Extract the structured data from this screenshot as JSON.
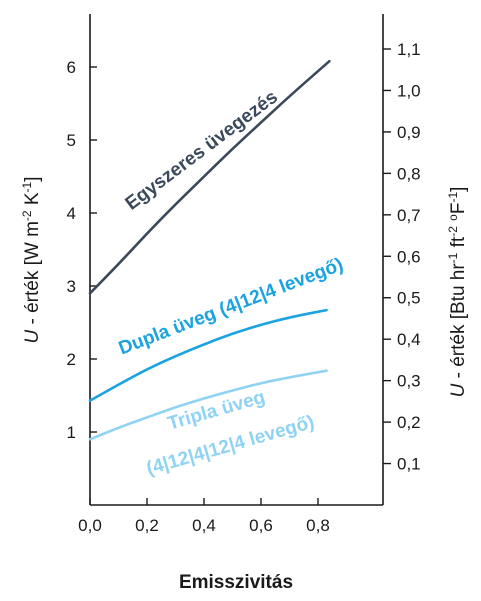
{
  "chart_data": {
    "type": "line",
    "xlabel": "Emisszivitás",
    "ylabel_left": {
      "prefix": "U",
      "text": " - érték [W m",
      "sup1": "-2",
      "mid": " K",
      "sup2": "-1",
      "end": "]"
    },
    "ylabel_right": {
      "prefix": "U",
      "text": " - érték [Btu hr",
      "sup1": "-1",
      "mid": " ft",
      "sup2": "-2",
      "sep": " ",
      "sup3": "o",
      "end": "F",
      "sup4": "-1",
      "close": "]"
    },
    "xlim": [
      0.0,
      1.0
    ],
    "ylim_left": [
      0,
      6.8
    ],
    "x_ticks": [
      {
        "value": 0.0,
        "label": "0,0"
      },
      {
        "value": 0.2,
        "label": "0,2"
      },
      {
        "value": 0.4,
        "label": "0,4"
      },
      {
        "value": 0.6,
        "label": "0,6"
      },
      {
        "value": 0.8,
        "label": "0,8"
      }
    ],
    "y_ticks_left": [
      {
        "value": 1,
        "label": "1"
      },
      {
        "value": 2,
        "label": "2"
      },
      {
        "value": 3,
        "label": "3"
      },
      {
        "value": 4,
        "label": "4"
      },
      {
        "value": 5,
        "label": "5"
      },
      {
        "value": 6,
        "label": "6"
      }
    ],
    "y_ticks_right": [
      {
        "value": 0.1,
        "label": "0,1"
      },
      {
        "value": 0.2,
        "label": "0,2"
      },
      {
        "value": 0.3,
        "label": "0,3"
      },
      {
        "value": 0.4,
        "label": "0,4"
      },
      {
        "value": 0.5,
        "label": "0,5"
      },
      {
        "value": 0.6,
        "label": "0,6"
      },
      {
        "value": 0.7,
        "label": "0,7"
      },
      {
        "value": 0.8,
        "label": "0,8"
      },
      {
        "value": 0.9,
        "label": "0,9"
      },
      {
        "value": 1.0,
        "label": "1,0"
      },
      {
        "value": 1.1,
        "label": "1,1"
      }
    ],
    "right_axis_factor": 0.1761,
    "grid": false,
    "series": [
      {
        "name": "Egyszeres üvegezés",
        "label_lines": [
          "Egyszeres üvegezés"
        ],
        "color": "#3a4a5c",
        "x": [
          0.0,
          0.1,
          0.2,
          0.3,
          0.4,
          0.5,
          0.6,
          0.7,
          0.84
        ],
        "y": [
          2.9,
          3.3,
          3.72,
          4.12,
          4.5,
          4.88,
          5.24,
          5.6,
          6.08
        ]
      },
      {
        "name": "Dupla üveg (4|12|4 levegő)",
        "label_lines": [
          "Dupla üveg (4|12|4  levegő)"
        ],
        "color": "#1aa3e0",
        "x": [
          0.0,
          0.1,
          0.2,
          0.3,
          0.4,
          0.5,
          0.6,
          0.7,
          0.83
        ],
        "y": [
          1.43,
          1.65,
          1.86,
          2.04,
          2.2,
          2.35,
          2.47,
          2.57,
          2.67
        ]
      },
      {
        "name": "Tripla üveg (4|12|4|12|4 levegő)",
        "label_lines": [
          "Tripla üveg",
          "(4|12|4|12|4  levegő)"
        ],
        "color": "#8fd3f4",
        "x": [
          0.0,
          0.1,
          0.2,
          0.3,
          0.4,
          0.5,
          0.6,
          0.7,
          0.83
        ],
        "y": [
          0.9,
          1.06,
          1.2,
          1.34,
          1.46,
          1.57,
          1.67,
          1.75,
          1.84
        ]
      }
    ]
  }
}
